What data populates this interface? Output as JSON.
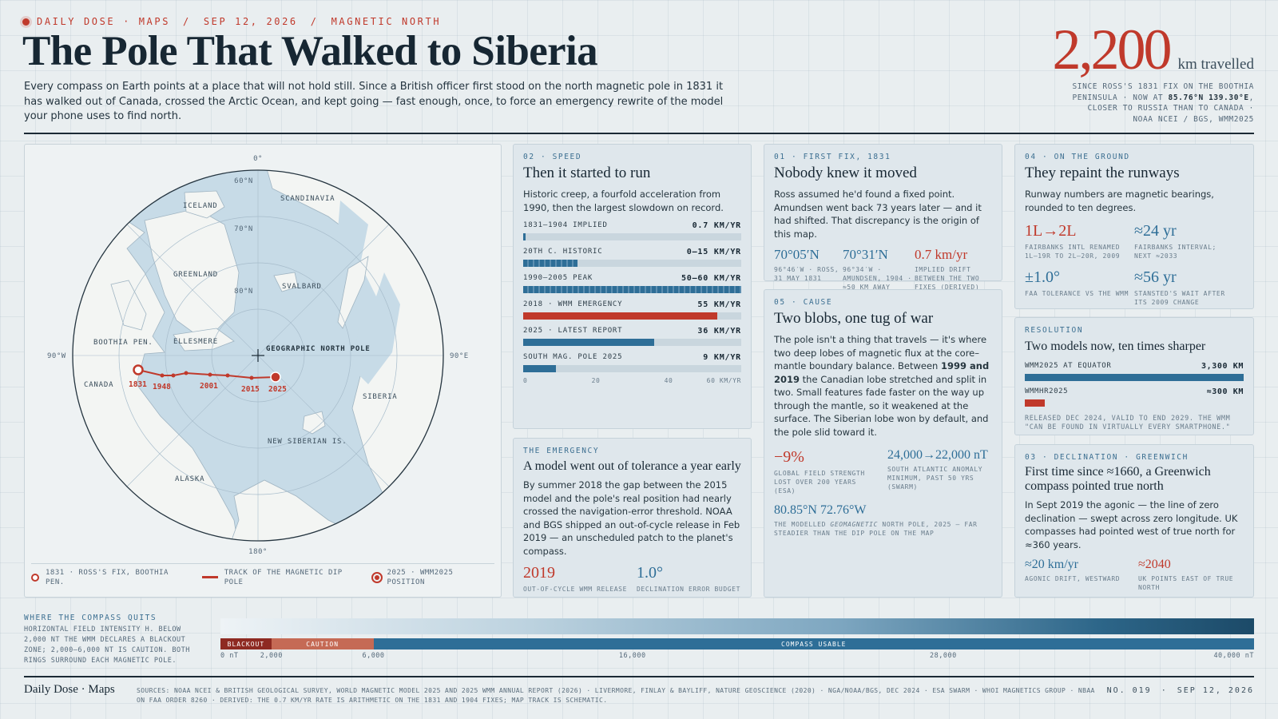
{
  "header": {
    "kicker": [
      "DAILY DOSE · MAPS",
      "SEP 12, 2026",
      "MAGNETIC NORTH"
    ],
    "kicker_sep": "/",
    "title": "The Pole That Walked to Siberia",
    "intro": "Every compass on Earth points at a place that will not hold still. Since a British officer first stood on the north magnetic pole in 1831 it has walked out of Canada, crossed the Arctic Ocean, and kept going — fast enough, once, to force an emergency rewrite of the model your phone uses to find north."
  },
  "hero": {
    "value": "2,200",
    "unit": "km travelled",
    "note_pre": "SINCE ROSS'S 1831 FIX ON THE BOOTHIA PENINSULA · NOW AT ",
    "note_pos": "85.76°N 139.30°E",
    "note_post": ", CLOSER TO RUSSIA THAN TO CANADA · NOAA NCEI / BGS, WMM2025"
  },
  "map": {
    "compass_labels": {
      "top": "0°",
      "bottom": "180°",
      "left": "90°W",
      "right": "90°E"
    },
    "latitude_labels": [
      "60°N",
      "70°N",
      "80°N"
    ],
    "regions": [
      "ICELAND",
      "SCANDINAVIA",
      "GREENLAND",
      "SVALBARD",
      "BOOTHIA PEN.",
      "ELLESMERE",
      "CANADA",
      "SIBERIA",
      "NEW SIBERIAN IS.",
      "ALASKA"
    ],
    "geographic_pole": "GEOGRAPHIC NORTH POLE",
    "track_years": [
      "1831",
      "1948",
      "2001",
      "2015",
      "2025"
    ],
    "legend": [
      "1831 · ROSS'S FIX, BOOTHIA PEN.",
      "TRACK OF THE MAGNETIC DIP POLE",
      "2025 · WMM2025 POSITION"
    ],
    "colors": {
      "track": "#c0392b",
      "ocean": "#c7dbe7",
      "land": "#f3f5f3"
    }
  },
  "speed": {
    "label": "02 · SPEED",
    "title": "Then it started to run",
    "body": "Historic creep, a fourfold acceleration from 1990, then the largest slowdown on record.",
    "chart_data": {
      "type": "bar",
      "unit": "KM/YR",
      "xlim": [
        0,
        60
      ],
      "ticks": [
        "0",
        "20",
        "40",
        "60 KM/YR"
      ],
      "bars": [
        {
          "label": "1831–1904 IMPLIED",
          "display": "0.7 KM/YR",
          "value": 0.7,
          "style": "solid"
        },
        {
          "label": "20TH C. HISTORIC",
          "display": "0–15 KM/YR",
          "value": 15,
          "style": "hatch"
        },
        {
          "label": "1990–2005 PEAK",
          "display": "50–60 KM/YR",
          "value": 60,
          "style": "hatch"
        },
        {
          "label": "2018 · WMM EMERGENCY",
          "display": "55 KM/YR",
          "value": 55,
          "style": "red"
        },
        {
          "label": "2025 · LATEST REPORT",
          "display": "36 KM/YR",
          "value": 36,
          "style": "solid"
        },
        {
          "label": "SOUTH MAG. POLE 2025",
          "display": "9 KM/YR",
          "value": 9,
          "style": "solid"
        }
      ]
    }
  },
  "first_fix": {
    "label": "01 · FIRST FIX, 1831",
    "title": "Nobody knew it moved",
    "body": "Ross assumed he'd found a fixed point. Amundsen went back 73 years later — and it had shifted. That discrepancy is the origin of this map.",
    "stats": [
      {
        "value": "70°05′N",
        "note": "96°46′W · ROSS, 31 MAY 1831",
        "color": "blue"
      },
      {
        "value": "70°31′N",
        "note": "96°34′W · AMUNDSEN, 1904 · ≈50 KM AWAY",
        "color": "blue"
      },
      {
        "value": "0.7 km/yr",
        "note": "IMPLIED DRIFT BETWEEN THE TWO FIXES (DERIVED)",
        "color": "red"
      }
    ]
  },
  "runways": {
    "label": "04 · ON THE GROUND",
    "title": "They repaint the runways",
    "body": "Runway numbers are magnetic bearings, rounded to ten degrees.",
    "stats": [
      {
        "value": "1L→2L",
        "note": "FAIRBANKS INTL RENAMED 1L–19R TO 2L–20R, 2009",
        "color": "red"
      },
      {
        "value": "≈24 yr",
        "note": "FAIRBANKS INTERVAL; NEXT ≈2033",
        "color": "blue"
      },
      {
        "value": "±1.0°",
        "note": "FAA TOLERANCE VS THE WMM",
        "color": "blue"
      },
      {
        "value": "≈56 yr",
        "note": "STANSTED'S WAIT AFTER ITS 2009 CHANGE",
        "color": "blue"
      }
    ]
  },
  "cause": {
    "label": "05 · CAUSE",
    "title": "Two blobs, one tug of war",
    "body_pre": "The pole isn't a thing that travels — it's where two deep lobes of magnetic flux at the core–mantle boundary balance. Between ",
    "body_bold": "1999 and 2019",
    "body_post": " the Canadian lobe stretched and split in two. Small features fade faster on the way up through the mantle, so it weakened at the surface. The Siberian lobe won by default, and the pole slid toward it.",
    "stats": [
      {
        "value": "−9%",
        "note": "GLOBAL FIELD STRENGTH LOST OVER 200 YEARS (ESA)",
        "color": "red"
      },
      {
        "value": "24,000→22,000 nT",
        "note": "SOUTH ATLANTIC ANOMALY MINIMUM, PAST 50 YRS (SWARM)",
        "color": "blue"
      }
    ],
    "geo_value": "80.85°N 72.76°W",
    "geo_note_pre": "THE MODELLED ",
    "geo_note_em": "GEOMAGNETIC",
    "geo_note_post": " NORTH POLE, 2025 — FAR STEADIER THAN THE DIP POLE ON THE MAP"
  },
  "resolution": {
    "label": "RESOLUTION",
    "title": "Two models now, ten times sharper",
    "chart_data": {
      "type": "bar",
      "unit": "KM",
      "xlim": [
        0,
        3300
      ],
      "bars": [
        {
          "label": "WMM2025 AT EQUATOR",
          "display": "3,300 KM",
          "value": 3300,
          "color": "#2e6e97"
        },
        {
          "label": "WMMHR2025",
          "display": "≈300 KM",
          "value": 300,
          "color": "#c0392b"
        }
      ]
    },
    "note": "RELEASED DEC 2024, VALID TO END 2029. THE WMM \"CAN BE FOUND IN VIRTUALLY EVERY SMARTPHONE.\""
  },
  "emergency": {
    "label": "THE EMERGENCY",
    "title": "A model went out of tolerance a year early",
    "body": "By summer 2018 the gap between the 2015 model and the pole's real position had nearly crossed the navigation-error threshold. NOAA and BGS shipped an out-of-cycle release in Feb 2019 — an unscheduled patch to the planet's compass.",
    "stats": [
      {
        "value": "2019",
        "note": "OUT-OF-CYCLE WMM RELEASE",
        "color": "red"
      },
      {
        "value": "1.0°",
        "note": "DECLINATION ERROR BUDGET",
        "color": "blue"
      }
    ]
  },
  "declination": {
    "label": "03 · DECLINATION · GREENWICH",
    "title": "First time since ≈1660, a Greenwich compass pointed true north",
    "body": "In Sept 2019 the agonic — the line of zero declination — swept across zero longitude. UK compasses had pointed west of true north for ≈360 years.",
    "stats": [
      {
        "value": "≈20 km/yr",
        "note": "AGONIC DRIFT, WESTWARD",
        "color": "blue"
      },
      {
        "value": "≈2040",
        "note": "UK POINTS EAST OF TRUE NORTH",
        "color": "red"
      }
    ]
  },
  "compass_quits": {
    "title": "WHERE THE COMPASS QUITS",
    "desc": "HORIZONTAL FIELD INTENSITY H. BELOW 2,000 NT THE WMM DECLARES A BLACKOUT ZONE; 2,000–6,000 NT IS CAUTION. BOTH RINGS SURROUND EACH MAGNETIC POLE.",
    "chart_data": {
      "type": "bar",
      "xlim": [
        0,
        40000
      ],
      "zones": [
        {
          "label": "BLACKOUT",
          "from": 0,
          "to": 2000,
          "color": "#8e2a22"
        },
        {
          "label": "CAUTION",
          "from": 2000,
          "to": 6000,
          "color": "#c56a55"
        },
        {
          "label": "COMPASS USABLE",
          "from": 6000,
          "to": 40000,
          "color": "#2e6e97"
        }
      ],
      "ticks": [
        {
          "value": 0,
          "label": "0 nT"
        },
        {
          "value": 2000,
          "label": "2,000"
        },
        {
          "value": 6000,
          "label": "6,000"
        },
        {
          "value": 16000,
          "label": "16,000"
        },
        {
          "value": 28000,
          "label": "28,000"
        },
        {
          "value": 40000,
          "label": "40,000 nT"
        }
      ]
    }
  },
  "footer": {
    "brand": "Daily Dose · Maps",
    "sources": "SOURCES: NOAA NCEI & BRITISH GEOLOGICAL SURVEY, WORLD MAGNETIC MODEL 2025 AND 2025 WMM ANNUAL REPORT (2026) · LIVERMORE, FINLAY & BAYLIFF, NATURE GEOSCIENCE (2020) · NGA/NOAA/BGS, DEC 2024 · ESA SWARM · WHOI MAGNETICS GROUP · NBAA ON FAA ORDER 8260 · DERIVED: THE 0.7 KM/YR RATE IS ARITHMETIC ON THE 1831 AND 1904 FIXES; MAP TRACK IS SCHEMATIC.",
    "issue": "NO. 019",
    "date": "SEP 12, 2026"
  }
}
